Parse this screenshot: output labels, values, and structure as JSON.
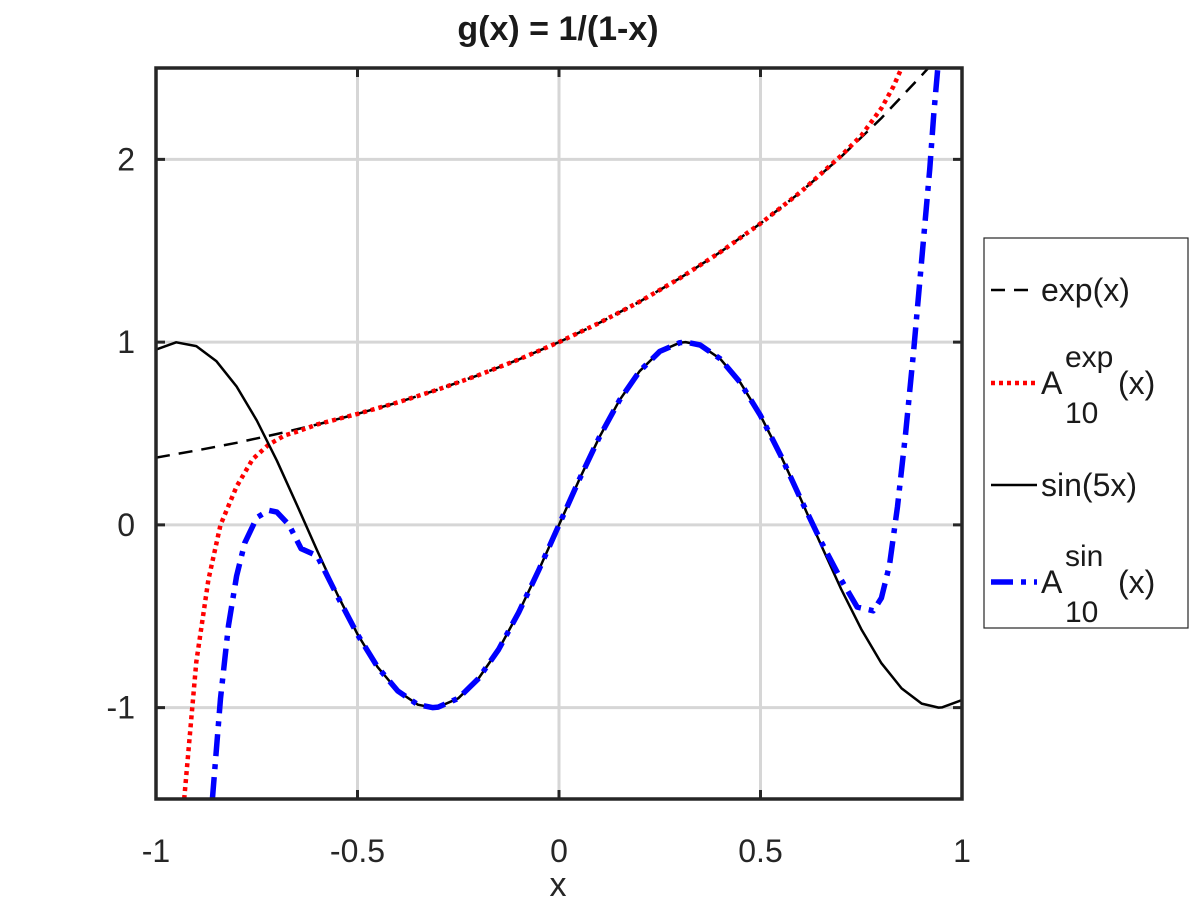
{
  "chart_data": {
    "type": "line",
    "title": "g(x) = 1/(1-x)",
    "xlabel": "x",
    "ylabel": "",
    "xlim": [
      -1,
      1
    ],
    "ylim": [
      -1.5,
      2.5
    ],
    "xticks": [
      -1,
      -0.5,
      0,
      0.5,
      1
    ],
    "xtick_labels": [
      "-1",
      "-0.5",
      "0",
      "0.5",
      "1"
    ],
    "yticks": [
      -1,
      0,
      1,
      2
    ],
    "ytick_labels": [
      "-1",
      "0",
      "1",
      "2"
    ],
    "grid": true,
    "legend_position": "outside-right",
    "series": [
      {
        "name": "exp(x)",
        "legend": {
          "base": "exp(x)",
          "sup": "",
          "sub": "",
          "after": ""
        },
        "color": "#000000",
        "style": "dashed",
        "x": [
          -1,
          -0.9,
          -0.8,
          -0.7,
          -0.6,
          -0.5,
          -0.4,
          -0.3,
          -0.2,
          -0.1,
          0,
          0.1,
          0.2,
          0.3,
          0.4,
          0.5,
          0.6,
          0.7,
          0.8,
          0.9,
          0.92
        ],
        "y": [
          0.368,
          0.407,
          0.449,
          0.497,
          0.549,
          0.607,
          0.67,
          0.741,
          0.819,
          0.905,
          1.0,
          1.105,
          1.221,
          1.35,
          1.492,
          1.649,
          1.822,
          2.014,
          2.226,
          2.46,
          2.509
        ]
      },
      {
        "name": "A10exp(x)",
        "legend": {
          "base": "A",
          "sup": "exp",
          "sub": "10",
          "after": "(x)"
        },
        "color": "#ff0000",
        "style": "dotted",
        "x": [
          -0.93,
          -0.9,
          -0.87,
          -0.84,
          -0.8,
          -0.76,
          -0.72,
          -0.68,
          -0.65,
          -0.6,
          -0.5,
          -0.4,
          -0.3,
          -0.2,
          -0.1,
          0,
          0.1,
          0.2,
          0.3,
          0.4,
          0.5,
          0.6,
          0.7,
          0.75,
          0.8,
          0.83,
          0.85
        ],
        "y": [
          -1.5,
          -0.75,
          -0.3,
          0.0,
          0.21,
          0.36,
          0.44,
          0.49,
          0.51,
          0.55,
          0.607,
          0.67,
          0.741,
          0.819,
          0.905,
          1.0,
          1.105,
          1.221,
          1.35,
          1.492,
          1.649,
          1.822,
          2.02,
          2.13,
          2.28,
          2.4,
          2.5
        ]
      },
      {
        "name": "sin(5x)",
        "legend": {
          "base": "sin(5x)",
          "sup": "",
          "sub": "",
          "after": ""
        },
        "color": "#000000",
        "style": "solid",
        "x": [
          -1,
          -0.95,
          -0.9,
          -0.85,
          -0.8,
          -0.75,
          -0.7,
          -0.65,
          -0.6,
          -0.55,
          -0.5,
          -0.45,
          -0.4,
          -0.35,
          -0.314,
          -0.3,
          -0.25,
          -0.2,
          -0.15,
          -0.1,
          -0.05,
          0,
          0.05,
          0.1,
          0.15,
          0.2,
          0.25,
          0.3,
          0.314,
          0.35,
          0.4,
          0.45,
          0.5,
          0.55,
          0.6,
          0.65,
          0.7,
          0.75,
          0.8,
          0.85,
          0.9,
          0.942,
          0.95,
          1
        ],
        "y": [
          0.959,
          0.999,
          0.978,
          0.895,
          0.757,
          0.571,
          0.351,
          0.108,
          -0.141,
          -0.381,
          -0.598,
          -0.778,
          -0.909,
          -0.984,
          -1.0,
          -0.997,
          -0.949,
          -0.841,
          -0.682,
          -0.479,
          -0.247,
          0,
          0.247,
          0.479,
          0.682,
          0.841,
          0.949,
          0.997,
          1.0,
          0.984,
          0.909,
          0.778,
          0.598,
          0.381,
          0.141,
          -0.108,
          -0.351,
          -0.571,
          -0.757,
          -0.895,
          -0.978,
          -1.0,
          -0.999,
          -0.959
        ]
      },
      {
        "name": "A10sin(x)",
        "legend": {
          "base": "A",
          "sup": "sin",
          "sub": "10",
          "after": "(x)"
        },
        "color": "#0000ff",
        "style": "dashdot",
        "x": [
          -0.86,
          -0.84,
          -0.82,
          -0.8,
          -0.78,
          -0.75,
          -0.72,
          -0.7,
          -0.67,
          -0.64,
          -0.6,
          -0.55,
          -0.5,
          -0.45,
          -0.4,
          -0.35,
          -0.314,
          -0.3,
          -0.25,
          -0.2,
          -0.15,
          -0.1,
          -0.05,
          0,
          0.05,
          0.1,
          0.15,
          0.2,
          0.25,
          0.3,
          0.314,
          0.35,
          0.4,
          0.45,
          0.5,
          0.55,
          0.6,
          0.65,
          0.7,
          0.74,
          0.78,
          0.8,
          0.82,
          0.84,
          0.86,
          0.88,
          0.9,
          0.92,
          0.93,
          0.94
        ],
        "y": [
          -1.5,
          -0.95,
          -0.55,
          -0.28,
          -0.1,
          0.04,
          0.08,
          0.07,
          0.0,
          -0.13,
          -0.17,
          -0.39,
          -0.6,
          -0.778,
          -0.909,
          -0.984,
          -1.0,
          -0.997,
          -0.949,
          -0.841,
          -0.682,
          -0.479,
          -0.247,
          0,
          0.247,
          0.479,
          0.682,
          0.841,
          0.949,
          0.997,
          1.0,
          0.984,
          0.909,
          0.778,
          0.598,
          0.381,
          0.14,
          -0.09,
          -0.3,
          -0.45,
          -0.47,
          -0.4,
          -0.22,
          0.1,
          0.5,
          0.95,
          1.45,
          1.95,
          2.25,
          2.5
        ]
      }
    ]
  }
}
